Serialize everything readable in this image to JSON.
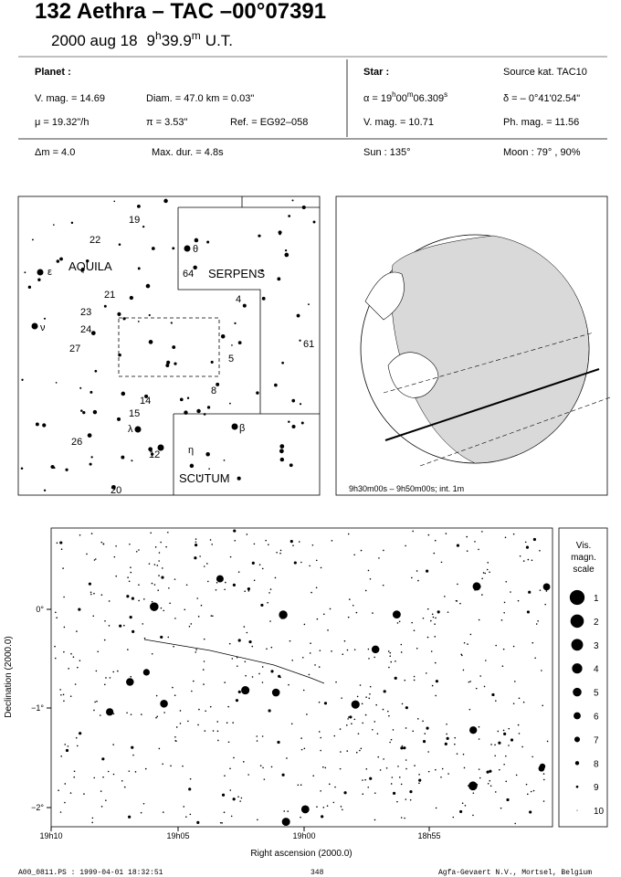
{
  "header": {
    "title": "132 Aethra  –  TAC –00°07391",
    "date": "2000 aug 18",
    "time": {
      "hours": "9",
      "h": "h",
      "minutes": "39.9",
      "m": "m",
      "ut": "U.T."
    }
  },
  "planet": {
    "label": "Planet :",
    "vmag": "V. mag. = 14.69",
    "diam": "Diam. = 47.0 km = 0.03\"",
    "mu": "μ =  19.32\"/h",
    "pi": "π =  3.53\"",
    "ref": "Ref. = EG92–058"
  },
  "star": {
    "label": "Star :",
    "source": "Source kat.  TAC10",
    "alpha": {
      "prefix": "α = 19",
      "h": "h",
      "min": "00",
      "m": "m",
      "sec": "06.309",
      "s": "s"
    },
    "delta": "δ = – 0°41'02.54\"",
    "vmag": "V. mag. = 10.71",
    "phmag": "Ph. mag. = 11.56"
  },
  "circumstances": {
    "dm": "Δm = 4.0",
    "maxdur": "Max. dur. = 4.8s",
    "sun": "Sun : 135°",
    "moon": "Moon :  79° , 90%"
  },
  "finder": {
    "labels": [
      "19",
      "22",
      "AQUILA",
      "ε",
      "21",
      "23",
      "ν",
      "24",
      "27",
      "15",
      "14",
      "λ",
      "12",
      "26",
      "20",
      "θ",
      "64",
      "SERPENS",
      "4",
      "5",
      "8",
      "61",
      "β",
      "η",
      "SCUTUM"
    ]
  },
  "globe": {
    "caption": "9h30m00s –  9h50m00s; int.  1m"
  },
  "star_chart": {
    "y_label": "Declination (2000.0)",
    "x_label": "Right ascension (2000.0)",
    "y_ticks": [
      "0°",
      "−1°",
      "−2°"
    ],
    "x_ticks": [
      "19h10",
      "19h05",
      "19h00",
      "18h55"
    ],
    "scale_title": [
      "Vis.",
      "magn.",
      "scale"
    ],
    "scale": [
      1,
      2,
      3,
      4,
      5,
      6,
      7,
      8,
      9,
      10
    ]
  },
  "footer": {
    "file": "A00_0811.PS : 1999-04-01 18:32:51",
    "page": "348",
    "credit": "Agfa-Gevaert N.V., Mortsel, Belgium"
  }
}
